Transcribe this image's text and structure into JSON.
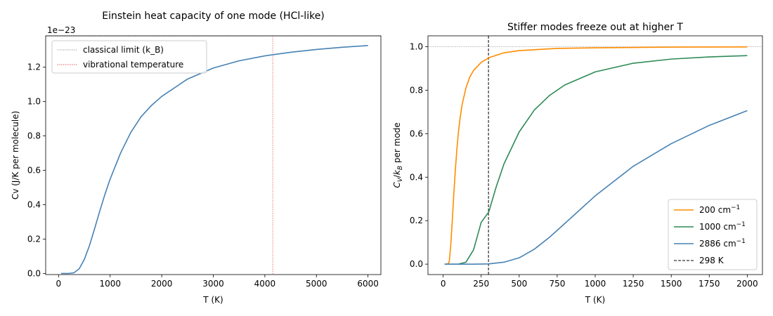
{
  "chart_data": [
    {
      "type": "line",
      "title": "Einstein heat capacity of one mode (HCl-like)",
      "xlabel": "T (K)",
      "ylabel": "Cv (J/K per molecule)",
      "offset_label": "1e−23",
      "xlim": [
        -250,
        6250
      ],
      "ylim": [
        -0.0066,
        1.3826
      ],
      "x_ticks": [
        0,
        1000,
        2000,
        3000,
        4000,
        5000,
        6000
      ],
      "y_ticks": [
        0.0,
        0.2,
        0.4,
        0.6,
        0.8,
        1.0,
        1.2
      ],
      "y_tick_labels": [
        "0.0",
        "0.2",
        "0.4",
        "0.6",
        "0.8",
        "1.0",
        "1.2"
      ],
      "series": [
        {
          "color": "#4682b4",
          "x": [
            50,
            200,
            300,
            400,
            500,
            600,
            700,
            800,
            900,
            1000,
            1200,
            1400,
            1600,
            1800,
            2000,
            2500,
            3000,
            3500,
            4000,
            4500,
            5000,
            5500,
            6000
          ],
          "y": [
            0.0,
            0.0,
            0.004,
            0.027,
            0.082,
            0.163,
            0.262,
            0.364,
            0.461,
            0.549,
            0.699,
            0.82,
            0.912,
            0.977,
            1.03,
            1.131,
            1.195,
            1.237,
            1.266,
            1.287,
            1.303,
            1.316,
            1.326
          ]
        }
      ],
      "hlines": [
        {
          "y": 1.3806,
          "color": "#808080",
          "label": "classical limit (k_B)"
        }
      ],
      "vlines": [
        {
          "x": 4153,
          "color": "#d62728",
          "label": "vibrational temperature"
        }
      ],
      "legend": {
        "position": "top-left",
        "entries": [
          "classical limit (k_B)",
          "vibrational temperature"
        ]
      },
      "grid": false
    },
    {
      "type": "line",
      "title": "Stiffer modes freeze out at higher T",
      "xlabel": "T (K)",
      "ylabel": "C_V/k_B per mode",
      "xlim": [
        -100,
        2100
      ],
      "ylim": [
        -0.048,
        1.05
      ],
      "x_ticks": [
        0,
        250,
        500,
        750,
        1000,
        1250,
        1500,
        1750,
        2000
      ],
      "y_ticks": [
        0.0,
        0.2,
        0.4,
        0.6,
        0.8,
        1.0
      ],
      "y_tick_labels": [
        "0.0",
        "0.2",
        "0.4",
        "0.6",
        "0.8",
        "1.0"
      ],
      "series": [
        {
          "name": "200 cm⁻¹",
          "color": "#ff8c00",
          "x": [
            10,
            30,
            40,
            50,
            60,
            70,
            80,
            90,
            100,
            110,
            125,
            150,
            175,
            200,
            250,
            300,
            400,
            500,
            750,
            1000,
            1500,
            2000
          ],
          "y": [
            0.0,
            0.0,
            0.011,
            0.087,
            0.2,
            0.322,
            0.432,
            0.526,
            0.604,
            0.664,
            0.735,
            0.811,
            0.86,
            0.891,
            0.928,
            0.949,
            0.972,
            0.982,
            0.992,
            0.995,
            0.998,
            0.999
          ]
        },
        {
          "name": "1000 cm⁻¹",
          "color": "#2e8b57",
          "x": [
            10,
            100,
            150,
            200,
            250,
            300,
            350,
            400,
            500,
            600,
            700,
            800,
            1000,
            1250,
            1500,
            1750,
            2000
          ],
          "y": [
            0.0,
            0.0,
            0.009,
            0.066,
            0.192,
            0.24,
            0.358,
            0.461,
            0.608,
            0.709,
            0.776,
            0.824,
            0.884,
            0.924,
            0.943,
            0.953,
            0.959
          ]
        },
        {
          "name": "2886 cm⁻¹",
          "color": "#4682b4",
          "x": [
            10,
            200,
            300,
            400,
            500,
            600,
            700,
            800,
            1000,
            1250,
            1500,
            1750,
            2000
          ],
          "y": [
            0.0,
            0.0,
            0.001,
            0.009,
            0.029,
            0.069,
            0.124,
            0.187,
            0.314,
            0.45,
            0.554,
            0.638,
            0.706
          ]
        }
      ],
      "hlines": [
        {
          "y": 1.0,
          "color": "#808080"
        }
      ],
      "vlines": [
        {
          "x": 298,
          "color": "#000000",
          "label": "298 K"
        }
      ],
      "legend": {
        "position": "bottom-right",
        "entries": [
          "200 cm⁻¹",
          "1000 cm⁻¹",
          "2886 cm⁻¹",
          "298 K"
        ]
      },
      "grid": false
    }
  ]
}
